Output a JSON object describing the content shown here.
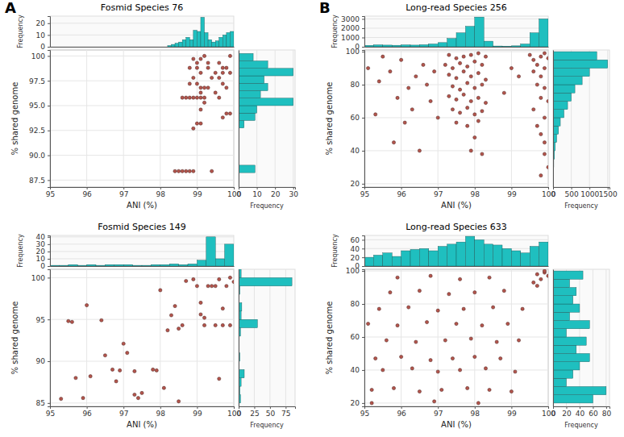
{
  "chart_data": [
    {
      "type": "scatter",
      "panel": "A",
      "title": "Fosmid Species 76",
      "xlabel": "ANI (%)",
      "ylabel": "% shared genome",
      "color": "#b4554c",
      "grid": true,
      "xlim": [
        95,
        100
      ],
      "xticks": [
        95,
        96,
        97,
        98,
        99,
        100
      ],
      "ylim": [
        86.8,
        100.6
      ],
      "yticks": [
        87.5,
        {
          "value": 90,
          "label": "90.0"
        },
        92.5,
        {
          "value": 95,
          "label": "95.0"
        },
        97.5,
        100
      ],
      "x": [
        98.4,
        98.5,
        98.6,
        98.7,
        98.8,
        98.9,
        99.4,
        98.9,
        99.0,
        99.1,
        99.7,
        99.8,
        99.9,
        99.1,
        99.2,
        98.6,
        98.7,
        98.8,
        98.9,
        99.0,
        99.1,
        99.2,
        99.6,
        99.1,
        99.5,
        99.1,
        99.2,
        99.3,
        99.8,
        98.8,
        99.0,
        99.7,
        98.9,
        99.4,
        99.6,
        99.1,
        99.5,
        99.7,
        99.9,
        98.8,
        99.0,
        99.3,
        99.7,
        99.8,
        99.0,
        99.3,
        99.6,
        98.9,
        99.1,
        99.2,
        99.9
      ],
      "y": [
        88.4,
        88.4,
        88.4,
        88.4,
        88.4,
        88.4,
        88.4,
        92.7,
        93.2,
        93.2,
        93.8,
        94.2,
        94.2,
        94.6,
        95.3,
        95.8,
        95.8,
        95.8,
        95.8,
        95.8,
        95.8,
        95.8,
        95.8,
        96.3,
        96.3,
        96.8,
        96.8,
        96.8,
        96.8,
        97.2,
        97.2,
        97.2,
        97.8,
        97.8,
        97.8,
        98.3,
        98.3,
        98.3,
        98.3,
        98.8,
        98.8,
        98.8,
        98.8,
        98.8,
        99.3,
        99.3,
        99.3,
        99.7,
        99.7,
        100,
        100
      ],
      "x_hist": {
        "color": "#1fbfbf",
        "ylabel": "Frequency",
        "ylim": [
          0,
          26
        ],
        "yticks": [
          0,
          10,
          20
        ],
        "bins": [
          98.0,
          98.1,
          98.2,
          98.3,
          98.4,
          98.5,
          98.6,
          98.7,
          98.8,
          98.9,
          99.0,
          99.1,
          99.2,
          99.3,
          99.4,
          99.5,
          99.6,
          99.7,
          99.8,
          99.9,
          100.0
        ],
        "counts": [
          0,
          0,
          1,
          2,
          3,
          4,
          6,
          8,
          6,
          14,
          13,
          25,
          12,
          6,
          4,
          5,
          8,
          10,
          12,
          13
        ]
      },
      "y_hist": {
        "color": "#1fbfbf",
        "xlabel": "Frequency",
        "xlim": [
          0,
          31
        ],
        "xticks": [
          0,
          10,
          20,
          30
        ],
        "bins": [
          87.5,
          88.25,
          89,
          89.75,
          90.5,
          91.25,
          92,
          92.75,
          93.5,
          94.25,
          95,
          95.75,
          96.5,
          97.25,
          98,
          98.75,
          99.5,
          100.25
        ],
        "counts": [
          0,
          9,
          0,
          0,
          0,
          0,
          0,
          3,
          9,
          10,
          30,
          12,
          16,
          14,
          30,
          16,
          8
        ]
      }
    },
    {
      "type": "scatter",
      "title": "Fosmid Species 149",
      "xlabel": "ANI (%)",
      "ylabel": "% shared genome",
      "color": "#b4554c",
      "grid": true,
      "xlim": [
        95,
        100
      ],
      "xticks": [
        95,
        96,
        97,
        98,
        99,
        100
      ],
      "ylim": [
        84.6,
        101
      ],
      "yticks": [
        85,
        90,
        95,
        100
      ],
      "x": [
        95.3,
        95.5,
        95.6,
        95.7,
        95.9,
        96.0,
        96.1,
        96.4,
        96.5,
        96.7,
        96.8,
        96.9,
        97.0,
        97.1,
        97.3,
        97.3,
        97.4,
        97.5,
        97.8,
        97.9,
        98.0,
        98.1,
        98.2,
        98.3,
        98.4,
        98.5,
        98.5,
        98.6,
        98.7,
        99.0,
        99.1,
        99.2,
        99.2,
        99.3,
        99.4,
        99.5,
        99.5,
        99.6,
        99.7,
        99.7,
        99.8,
        99.9,
        99.9,
        100.0,
        99.6,
        99.1,
        98.9
      ],
      "y": [
        85.5,
        94.8,
        94.7,
        88.0,
        85.6,
        96.7,
        88.2,
        94.9,
        90.7,
        89.0,
        87.6,
        88.9,
        92.1,
        91.0,
        86.0,
        88.8,
        85.6,
        86.2,
        89.0,
        88.9,
        98.5,
        86.8,
        93.7,
        95.5,
        96.6,
        93.9,
        85.2,
        94.3,
        99.6,
        99.0,
        95.6,
        95.2,
        94.3,
        99.0,
        99.0,
        99.0,
        94.3,
        99.8,
        96.3,
        94.3,
        99.0,
        100.0,
        94.3,
        99.5,
        87.9,
        97.0,
        99.8
      ],
      "x_hist": {
        "color": "#1fbfbf",
        "ylabel": "Frequency",
        "ylim": [
          0,
          42
        ],
        "yticks": [
          0,
          10,
          20,
          30,
          40
        ],
        "bins": [
          95,
          95.25,
          95.5,
          95.75,
          96,
          96.25,
          96.5,
          96.75,
          97,
          97.25,
          97.5,
          97.75,
          98,
          98.25,
          98.5,
          98.75,
          99,
          99.25,
          99.5,
          99.75,
          100
        ],
        "counts": [
          1,
          1,
          2,
          1,
          2,
          1,
          2,
          2,
          2,
          1,
          1,
          2,
          2,
          3,
          2,
          3,
          8,
          40,
          10,
          30
        ]
      },
      "y_hist": {
        "color": "#1fbfbf",
        "xlabel": "Frequency",
        "xlim": [
          0,
          90
        ],
        "xticks": [
          0,
          25,
          50,
          75
        ],
        "bins": [
          85,
          86,
          87,
          88,
          89,
          90,
          91,
          92,
          93,
          94,
          95,
          96,
          97,
          98,
          99,
          100,
          101
        ],
        "counts": [
          3,
          2,
          4,
          9,
          1,
          2,
          1,
          1,
          3,
          30,
          4,
          5,
          1,
          2,
          85,
          4
        ]
      }
    },
    {
      "type": "scatter",
      "panel": "B",
      "title": "Long-read Species 256",
      "xlabel": "ANI (%)",
      "ylabel": "% shared genome",
      "color": "#b4554c",
      "grid": true,
      "xlim": [
        95,
        100
      ],
      "xticks": [
        95,
        96,
        97,
        98,
        99,
        100
      ],
      "ylim": [
        18,
        101
      ],
      "yticks": [
        20,
        40,
        60,
        80,
        100
      ],
      "x": [
        97.3,
        97.5,
        97.7,
        97.9,
        98.1,
        98.3,
        97.2,
        97.4,
        97.6,
        97.8,
        98.0,
        98.2,
        97.3,
        97.5,
        97.7,
        97.9,
        98.1,
        98.3,
        97.4,
        97.6,
        97.8,
        98.0,
        98.2,
        97.3,
        97.5,
        97.7,
        97.9,
        98.1,
        98.3,
        97.4,
        97.6,
        97.8,
        98.0,
        98.2,
        97.5,
        97.8,
        98.1,
        98.0,
        97.9,
        98.2,
        95.1,
        95.4,
        95.7,
        96.0,
        96.2,
        96.4,
        96.6,
        96.8,
        96.9,
        97.0,
        96.3,
        95.9,
        95.5,
        96.1,
        96.7,
        95.3,
        95.8,
        96.5,
        99.5,
        99.6,
        99.7,
        99.8,
        99.9,
        100,
        99.6,
        99.8,
        99.9,
        99.7,
        99.9,
        99.8,
        100,
        99.6,
        99.9,
        99.7,
        99.8,
        99.9,
        99.9,
        100,
        99.8,
        99.0,
        99.2,
        98.8
      ],
      "y": [
        98,
        96,
        97,
        98,
        99,
        97,
        92,
        90,
        93,
        91,
        94,
        92,
        86,
        84,
        88,
        85,
        87,
        83,
        79,
        77,
        81,
        78,
        80,
        73,
        71,
        74,
        70,
        72,
        69,
        65,
        63,
        66,
        62,
        64,
        57,
        55,
        58,
        48,
        40,
        38,
        90,
        82,
        88,
        95,
        78,
        85,
        92,
        70,
        88,
        60,
        65,
        72,
        97,
        57,
        80,
        62,
        45,
        40,
        98,
        95,
        92,
        97,
        99,
        96,
        88,
        85,
        90,
        80,
        78,
        72,
        70,
        65,
        60,
        55,
        50,
        45,
        38,
        30,
        25,
        90,
        85,
        75
      ],
      "x_hist": {
        "color": "#1fbfbf",
        "ylabel": "Frequency",
        "ylim": [
          0,
          3300
        ],
        "yticks": [
          0,
          1000,
          2000,
          3000
        ],
        "bins": [
          95,
          95.25,
          95.5,
          95.75,
          96,
          96.25,
          96.5,
          96.75,
          97,
          97.25,
          97.5,
          97.75,
          98,
          98.25,
          98.5,
          98.75,
          99,
          99.25,
          99.5,
          99.75,
          100
        ],
        "counts": [
          150,
          200,
          180,
          160,
          200,
          180,
          220,
          300,
          450,
          900,
          1500,
          2200,
          3200,
          600,
          80,
          60,
          100,
          300,
          1500,
          3000
        ]
      },
      "y_hist": {
        "color": "#1fbfbf",
        "xlabel": "Frequency",
        "xlim": [
          0,
          1550
        ],
        "xticks": [
          0,
          500,
          1000,
          1500
        ],
        "bins": [
          20,
          25,
          30,
          35,
          40,
          45,
          50,
          55,
          60,
          65,
          70,
          75,
          80,
          85,
          90,
          95,
          100
        ],
        "counts": [
          5,
          5,
          20,
          40,
          60,
          100,
          150,
          200,
          300,
          400,
          500,
          600,
          800,
          1000,
          1500,
          1200
        ]
      }
    },
    {
      "type": "scatter",
      "title": "Long-read Species 633",
      "xlabel": "ANI (%)",
      "ylabel": "% shared genome",
      "color": "#b4554c",
      "grid": true,
      "xlim": [
        95,
        100
      ],
      "xticks": [
        95,
        96,
        97,
        98,
        99,
        100
      ],
      "ylim": [
        18,
        101
      ],
      "yticks": [
        20,
        40,
        60,
        80,
        100
      ],
      "x": [
        95.2,
        95.8,
        96.5,
        97.1,
        97.8,
        98.4,
        99.0,
        95.5,
        96.3,
        97.0,
        97.6,
        98.3,
        99.1,
        95.3,
        96.0,
        96.8,
        97.4,
        98.0,
        98.7,
        95.6,
        96.4,
        97.2,
        97.9,
        98.6,
        99.2,
        95.1,
        95.9,
        96.7,
        97.5,
        98.2,
        98.9,
        95.4,
        96.2,
        97.0,
        97.7,
        98.5,
        99.3,
        95.7,
        96.5,
        97.3,
        98.0,
        98.8,
        95.9,
        96.8,
        97.6,
        98.4,
        99.6,
        99.7,
        99.8,
        99.9,
        100,
        99.7,
        99.9,
        95.2,
        96.9,
        98.1
      ],
      "y": [
        28,
        29,
        27,
        28,
        29,
        28,
        27,
        40,
        41,
        39,
        40,
        41,
        39,
        47,
        48,
        46,
        47,
        48,
        47,
        58,
        57,
        58,
        59,
        57,
        58,
        68,
        67,
        69,
        68,
        67,
        68,
        77,
        78,
        76,
        77,
        78,
        77,
        87,
        88,
        86,
        87,
        88,
        96,
        97,
        95,
        96,
        93,
        98,
        95,
        99,
        97,
        91,
        100,
        20,
        21,
        20
      ],
      "x_hist": {
        "color": "#1fbfbf",
        "ylabel": "Frequency",
        "ylim": [
          0,
          70
        ],
        "yticks": [
          0,
          20,
          40,
          60
        ],
        "bins": [
          95,
          95.25,
          95.5,
          95.75,
          96,
          96.25,
          96.5,
          96.75,
          97,
          97.25,
          97.5,
          97.75,
          98,
          98.25,
          98.5,
          98.75,
          99,
          99.25,
          99.5,
          99.75,
          100
        ],
        "counts": [
          20,
          25,
          30,
          22,
          35,
          38,
          40,
          35,
          45,
          50,
          55,
          68,
          60,
          50,
          48,
          40,
          35,
          30,
          45,
          55
        ]
      },
      "y_hist": {
        "color": "#1fbfbf",
        "xlabel": "Frequency",
        "xlim": [
          0,
          85
        ],
        "xticks": [
          0,
          20,
          40,
          60,
          80
        ],
        "bins": [
          20,
          25,
          30,
          35,
          40,
          45,
          50,
          55,
          60,
          65,
          70,
          75,
          80,
          85,
          90,
          95,
          100
        ],
        "counts": [
          60,
          80,
          20,
          30,
          40,
          55,
          35,
          50,
          20,
          55,
          25,
          40,
          30,
          35,
          25,
          45
        ]
      }
    }
  ]
}
